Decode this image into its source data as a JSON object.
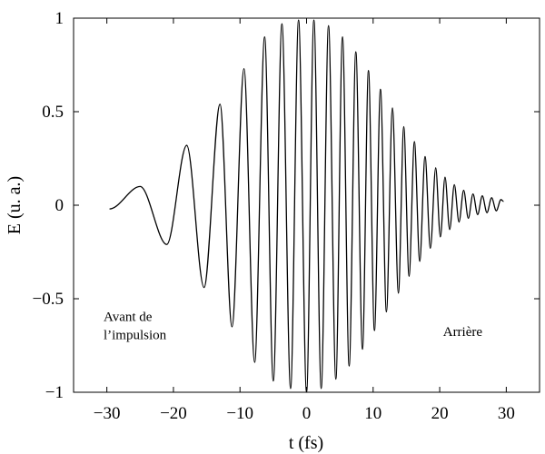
{
  "chart_data": {
    "type": "line",
    "title": "",
    "xlabel": "t (fs)",
    "ylabel": "E (u. a.)",
    "xlim": [
      -35,
      35
    ],
    "ylim": [
      -1,
      1
    ],
    "xticks": [
      -30,
      -20,
      -10,
      0,
      10,
      20,
      30
    ],
    "yticks": [
      -1,
      -0.5,
      0,
      0.5,
      1
    ],
    "xtick_labels": [
      "−30",
      "−20",
      "−10",
      "0",
      "10",
      "20",
      "30"
    ],
    "ytick_labels": [
      "−1",
      "−0.5",
      "0",
      "0.5",
      "1"
    ],
    "grid": false,
    "color": "#000000",
    "series": [
      {
        "name": "",
        "points": [
          [
            -29.6,
            -0.02
          ],
          [
            -25.0,
            0.1
          ],
          [
            -21.0,
            -0.21
          ],
          [
            -18.0,
            0.32
          ],
          [
            -15.4,
            -0.44
          ],
          [
            -13.0,
            0.54
          ],
          [
            -11.2,
            -0.65
          ],
          [
            -9.4,
            0.73
          ],
          [
            -7.8,
            -0.84
          ],
          [
            -6.3,
            0.9
          ],
          [
            -5.0,
            -0.94
          ],
          [
            -3.7,
            0.97
          ],
          [
            -2.4,
            -0.98
          ],
          [
            -1.2,
            0.99
          ],
          [
            0.0,
            -1.0
          ],
          [
            1.1,
            0.99
          ],
          [
            2.2,
            -0.98
          ],
          [
            3.3,
            0.96
          ],
          [
            4.4,
            -0.93
          ],
          [
            5.4,
            0.9
          ],
          [
            6.4,
            -0.86
          ],
          [
            7.4,
            0.82
          ],
          [
            8.4,
            -0.77
          ],
          [
            9.3,
            0.72
          ],
          [
            10.2,
            -0.67
          ],
          [
            11.1,
            0.62
          ],
          [
            12.0,
            -0.57
          ],
          [
            12.9,
            0.52
          ],
          [
            13.8,
            -0.47
          ],
          [
            14.6,
            0.42
          ],
          [
            15.4,
            -0.38
          ],
          [
            16.2,
            0.34
          ],
          [
            17.0,
            -0.3
          ],
          [
            17.8,
            0.26
          ],
          [
            18.6,
            -0.23
          ],
          [
            19.4,
            0.2
          ],
          [
            20.1,
            -0.17
          ],
          [
            20.8,
            0.15
          ],
          [
            21.5,
            -0.13
          ],
          [
            22.2,
            0.11
          ],
          [
            22.9,
            -0.09
          ],
          [
            23.6,
            0.08
          ],
          [
            24.3,
            -0.07
          ],
          [
            25.0,
            0.06
          ],
          [
            25.7,
            -0.05
          ],
          [
            26.4,
            0.05
          ],
          [
            27.1,
            -0.04
          ],
          [
            27.8,
            0.04
          ],
          [
            28.5,
            -0.03
          ],
          [
            29.2,
            0.03
          ],
          [
            29.6,
            0.02
          ]
        ]
      }
    ],
    "annotations": [
      {
        "lines": [
          "Avant de",
          "l’impulsion"
        ],
        "x": -30.5,
        "y": -0.62
      },
      {
        "lines": [
          "Arrière"
        ],
        "x": 20.5,
        "y": -0.7
      }
    ]
  }
}
